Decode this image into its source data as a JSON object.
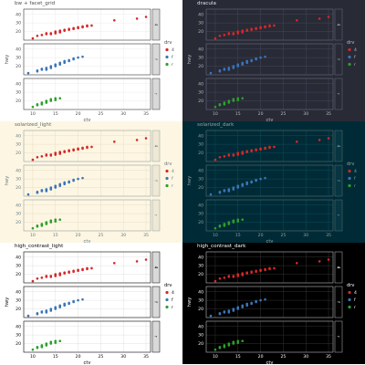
{
  "chart_data": [
    {
      "type": "scatter",
      "title": "bw + facet_grid",
      "theme": {
        "bg": "#ffffff",
        "panel": "#ffffff",
        "grid": "#ebebeb",
        "border": "#333333",
        "text": "#4d4d4d",
        "strip": "#d9d9d9",
        "strip_border": "#333333",
        "title": "#4d4d4d"
      }
    },
    {
      "type": "scatter",
      "title": "dracula",
      "theme": {
        "bg": "#282a36",
        "panel": "#282a36",
        "grid": "#44475a",
        "border": "#6b6e80",
        "text": "#bbbbbb",
        "strip": "#282a36",
        "strip_border": "#6b6e80",
        "title": "#e6e6e6"
      }
    },
    {
      "type": "scatter",
      "title": "solarized_light",
      "theme": {
        "bg": "#fdf6e3",
        "panel": "#fdf6e3",
        "grid": "#e9dfc4",
        "border": "#93a1a1",
        "text": "#657b83",
        "strip": "#eee8d5",
        "strip_border": "#93a1a1",
        "title": "#586e75"
      }
    },
    {
      "type": "scatter",
      "title": "solarized_dark",
      "theme": {
        "bg": "#002b36",
        "panel": "#002b36",
        "grid": "#0e4c5a",
        "border": "#586e75",
        "text": "#93a1a1",
        "strip": "#073642",
        "strip_border": "#586e75",
        "title": "#93a1a1"
      }
    },
    {
      "type": "scatter",
      "title": "high_contrast_light",
      "theme": {
        "bg": "#ffffff",
        "panel": "#ffffff",
        "grid": "#e0e0e0",
        "border": "#000000",
        "text": "#000000",
        "strip": "#d9d9d9",
        "strip_border": "#000000",
        "title": "#000000"
      }
    },
    {
      "type": "scatter",
      "title": "high_contrast_dark",
      "theme": {
        "bg": "#000000",
        "panel": "#000000",
        "grid": "#333333",
        "border": "#bdbdbd",
        "text": "#ffffff",
        "strip": "#000000",
        "strip_border": "#bdbdbd",
        "title": "#ffffff"
      }
    }
  ],
  "shared": {
    "xlabel": "cty",
    "ylabel": "hwy",
    "x_ticks": [
      10,
      15,
      20,
      25,
      30,
      35
    ],
    "xlim": [
      8,
      36
    ],
    "y_ticks": [
      20,
      30,
      40
    ],
    "ylim": [
      10,
      46
    ],
    "legend_title": "drv",
    "legend_items": [
      "4",
      "f",
      "r"
    ],
    "series": [
      {
        "name": "4",
        "color": "#d62728",
        "facet": "4",
        "points": [
          [
            11,
            15
          ],
          [
            12,
            16
          ],
          [
            13,
            17
          ],
          [
            14,
            17
          ],
          [
            14,
            18
          ],
          [
            15,
            19
          ],
          [
            15,
            20
          ],
          [
            16,
            20
          ],
          [
            16,
            21
          ],
          [
            17,
            21
          ],
          [
            17,
            22
          ],
          [
            18,
            22
          ],
          [
            18,
            23
          ],
          [
            19,
            23
          ],
          [
            19,
            24
          ],
          [
            20,
            24
          ],
          [
            20,
            25
          ],
          [
            21,
            25
          ],
          [
            21,
            26
          ],
          [
            22,
            26
          ],
          [
            22,
            27
          ],
          [
            23,
            27
          ],
          [
            15,
            18
          ],
          [
            16,
            19
          ],
          [
            13,
            18
          ],
          [
            10,
            12
          ],
          [
            28,
            33
          ],
          [
            33,
            35
          ],
          [
            35,
            37
          ]
        ]
      },
      {
        "name": "f",
        "color": "#3a74b8",
        "facet": "f",
        "points": [
          [
            9,
            12
          ],
          [
            11,
            14
          ],
          [
            11,
            15
          ],
          [
            12,
            16
          ],
          [
            13,
            17
          ],
          [
            13,
            18
          ],
          [
            14,
            19
          ],
          [
            14,
            20
          ],
          [
            15,
            20
          ],
          [
            15,
            21
          ],
          [
            16,
            22
          ],
          [
            16,
            23
          ],
          [
            17,
            24
          ],
          [
            17,
            25
          ],
          [
            18,
            26
          ],
          [
            18,
            27
          ],
          [
            19,
            28
          ],
          [
            20,
            30
          ],
          [
            21,
            31
          ],
          [
            14,
            18
          ],
          [
            13,
            16
          ],
          [
            15,
            22
          ],
          [
            16,
            24
          ],
          [
            17,
            26
          ],
          [
            19,
            29
          ],
          [
            12,
            17
          ]
        ]
      },
      {
        "name": "r",
        "color": "#2ca02c",
        "facet": "r",
        "points": [
          [
            10,
            13
          ],
          [
            11,
            15
          ],
          [
            12,
            16
          ],
          [
            12,
            17
          ],
          [
            13,
            18
          ],
          [
            13,
            19
          ],
          [
            14,
            20
          ],
          [
            14,
            21
          ],
          [
            15,
            21
          ],
          [
            15,
            23
          ],
          [
            16,
            23
          ],
          [
            11,
            16
          ],
          [
            12,
            18
          ],
          [
            14,
            22
          ],
          [
            13,
            20
          ]
        ]
      }
    ]
  }
}
